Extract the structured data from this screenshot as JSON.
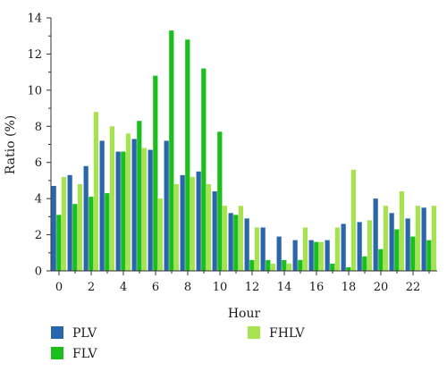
{
  "chart_data": {
    "type": "bar",
    "xlabel": "Hour",
    "ylabel": "Ratio (%)",
    "ylim": [
      0,
      14
    ],
    "xlim": [
      -0.5,
      23.5
    ],
    "y_ticks": [
      0,
      2,
      4,
      6,
      8,
      10,
      12,
      14
    ],
    "x_ticks": [
      0,
      2,
      4,
      6,
      8,
      10,
      12,
      14,
      16,
      18,
      20,
      22
    ],
    "grid": false,
    "legend_position": "bottom",
    "categories": [
      0,
      1,
      2,
      3,
      4,
      5,
      6,
      7,
      8,
      9,
      10,
      11,
      12,
      13,
      14,
      15,
      16,
      17,
      18,
      19,
      20,
      21,
      22,
      23
    ],
    "series": [
      {
        "name": "PLV",
        "color": "#2a66ad",
        "values": [
          4.7,
          5.3,
          5.8,
          7.2,
          6.6,
          7.3,
          6.7,
          7.2,
          5.3,
          5.5,
          4.4,
          3.2,
          2.9,
          2.4,
          1.9,
          1.7,
          1.7,
          1.7,
          2.6,
          2.7,
          4.0,
          3.2,
          2.9,
          3.5
        ]
      },
      {
        "name": "FLV",
        "color": "#1bbf1b",
        "values": [
          3.1,
          3.7,
          4.1,
          4.3,
          6.6,
          8.3,
          10.8,
          13.3,
          12.8,
          11.2,
          7.7,
          3.1,
          0.6,
          0.6,
          0.6,
          0.6,
          1.6,
          0.4,
          0.2,
          0.8,
          1.2,
          2.3,
          1.9,
          1.7
        ]
      },
      {
        "name": "FHLV",
        "color": "#a6e34e",
        "values": [
          5.2,
          4.8,
          8.8,
          8.0,
          7.6,
          6.8,
          4.0,
          4.8,
          5.2,
          4.8,
          3.6,
          3.6,
          2.4,
          0.4,
          0.4,
          2.4,
          1.6,
          2.4,
          5.6,
          2.8,
          3.6,
          4.4,
          3.6,
          3.6
        ]
      }
    ]
  }
}
